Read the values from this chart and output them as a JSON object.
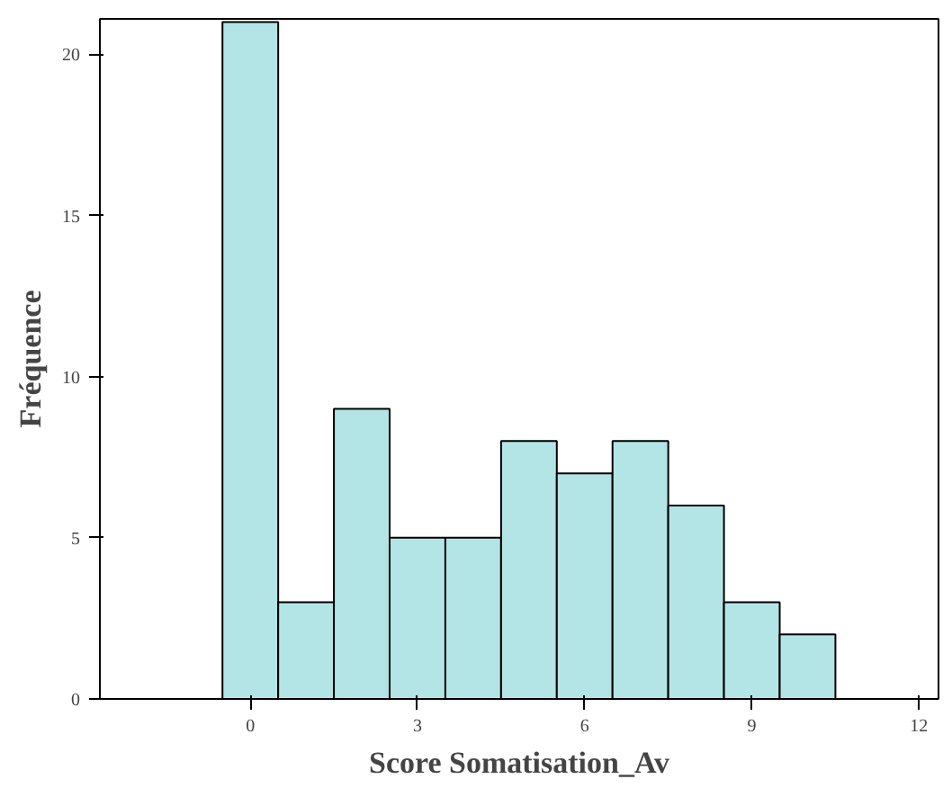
{
  "chart_data": {
    "type": "histogram",
    "xlabel": "Score Somatisation_Av",
    "ylabel": "Fréquence",
    "bins": [
      -0.5,
      0.5,
      1.5,
      2.5,
      3.5,
      4.5,
      5.5,
      6.5,
      7.5,
      8.5,
      9.5,
      10.5
    ],
    "values": [
      21,
      3,
      9,
      5,
      5,
      8,
      7,
      8,
      6,
      3,
      2
    ],
    "color": "#b3e5e6",
    "xlim": [
      -2.7,
      12.35
    ],
    "ylim": [
      0,
      21.1
    ],
    "xticks": [
      0,
      3,
      6,
      9,
      12
    ],
    "yticks": [
      0,
      5,
      10,
      15,
      20
    ],
    "grid": false
  }
}
